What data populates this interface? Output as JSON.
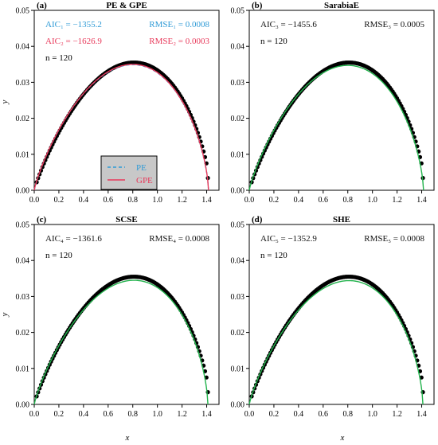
{
  "figure": {
    "x_label": "x",
    "y_label": "y"
  },
  "chart_data": [
    {
      "type": "scatter",
      "tag": "(a)",
      "title": "PE & GPE",
      "xlim": [
        0,
        1.5
      ],
      "ylim": [
        0,
        0.05
      ],
      "x_ticks": [
        "0.0",
        "0.2",
        "0.4",
        "0.6",
        "0.8",
        "1.0",
        "1.2",
        "1.4"
      ],
      "y_ticks": [
        "0.00",
        "0.01",
        "0.02",
        "0.03",
        "0.04",
        "0.05"
      ],
      "n_label": "n = 120",
      "annotations_left": [
        {
          "text": "AIC₁ = −1355.2",
          "color": "#2e9ad6"
        },
        {
          "text": "AIC₂ = −1626.9",
          "color": "#e8395a"
        }
      ],
      "annotations_right": [
        {
          "text": "RMSE₁ = 0.0008",
          "color": "#2e9ad6"
        },
        {
          "text": "RMSE₂ = 0.0003",
          "color": "#e8395a"
        }
      ],
      "legend": {
        "position": "bottom-center",
        "entries": [
          {
            "label": "PE",
            "color": "#2e9ad6",
            "style": "dashed"
          },
          {
            "label": "GPE",
            "color": "#e8395a",
            "style": "solid"
          }
        ]
      },
      "data_points": {
        "n": 120,
        "x_range": [
          0.02,
          1.41
        ],
        "peak_x": 0.81,
        "peak_y": 0.0355,
        "end_y": 0.0034
      },
      "series": [
        {
          "name": "PE",
          "color": "#2e9ad6",
          "style": "dashed",
          "peak_x": 0.8,
          "peak_y": 0.0349,
          "end_x": 1.415
        },
        {
          "name": "GPE",
          "color": "#e8395a",
          "style": "solid",
          "peak_x": 0.8,
          "peak_y": 0.035,
          "end_x": 1.415
        }
      ]
    },
    {
      "type": "scatter",
      "tag": "(b)",
      "title": "SarabiaE",
      "xlim": [
        0,
        1.5
      ],
      "ylim": [
        0,
        0.05
      ],
      "x_ticks": [
        "0.0",
        "0.2",
        "0.4",
        "0.6",
        "0.8",
        "1.0",
        "1.2",
        "1.4"
      ],
      "y_ticks": [
        "0.00",
        "0.01",
        "0.02",
        "0.03",
        "0.04",
        "0.05"
      ],
      "n_label": "n = 120",
      "annotations_left": [
        {
          "text": "AIC₃ = −1455.6",
          "color": "#111111"
        }
      ],
      "annotations_right": [
        {
          "text": "RMSE₃ = 0.0005",
          "color": "#111111"
        }
      ],
      "data_points": {
        "n": 120,
        "x_range": [
          0.02,
          1.41
        ],
        "peak_x": 0.81,
        "peak_y": 0.0355,
        "end_y": 0.0034
      },
      "series": [
        {
          "name": "SarabiaE",
          "color": "#22b24c",
          "style": "solid",
          "peak_x": 0.8,
          "peak_y": 0.0347,
          "end_x": 1.415
        }
      ]
    },
    {
      "type": "scatter",
      "tag": "(c)",
      "title": "SCSE",
      "xlim": [
        0,
        1.5
      ],
      "ylim": [
        0,
        0.05
      ],
      "x_ticks": [
        "0.0",
        "0.2",
        "0.4",
        "0.6",
        "0.8",
        "1.0",
        "1.2",
        "1.4"
      ],
      "y_ticks": [
        "0.00",
        "0.01",
        "0.02",
        "0.03",
        "0.04",
        "0.05"
      ],
      "n_label": "n = 120",
      "annotations_left": [
        {
          "text": "AIC₄ = −1361.6",
          "color": "#111111"
        }
      ],
      "annotations_right": [
        {
          "text": "RMSE₄ = 0.0008",
          "color": "#111111"
        }
      ],
      "data_points": {
        "n": 120,
        "x_range": [
          0.02,
          1.41
        ],
        "peak_x": 0.81,
        "peak_y": 0.0355,
        "end_y": 0.0034
      },
      "series": [
        {
          "name": "SCSE",
          "color": "#22b24c",
          "style": "solid",
          "peak_x": 0.81,
          "peak_y": 0.0345,
          "end_x": 1.41
        }
      ]
    },
    {
      "type": "scatter",
      "tag": "(d)",
      "title": "SHE",
      "xlim": [
        0,
        1.5
      ],
      "ylim": [
        0,
        0.05
      ],
      "x_ticks": [
        "0.0",
        "0.2",
        "0.4",
        "0.6",
        "0.8",
        "1.0",
        "1.2",
        "1.4"
      ],
      "y_ticks": [
        "0.00",
        "0.01",
        "0.02",
        "0.03",
        "0.04",
        "0.05"
      ],
      "n_label": "n = 120",
      "annotations_left": [
        {
          "text": "AIC₅ = −1352.9",
          "color": "#111111"
        }
      ],
      "annotations_right": [
        {
          "text": "RMSE₅ = 0.0008",
          "color": "#111111"
        }
      ],
      "data_points": {
        "n": 120,
        "x_range": [
          0.02,
          1.41
        ],
        "peak_x": 0.81,
        "peak_y": 0.0355,
        "end_y": 0.0034
      },
      "series": [
        {
          "name": "SHE",
          "color": "#22b24c",
          "style": "solid",
          "peak_x": 0.81,
          "peak_y": 0.0344,
          "end_x": 1.41
        }
      ]
    }
  ]
}
